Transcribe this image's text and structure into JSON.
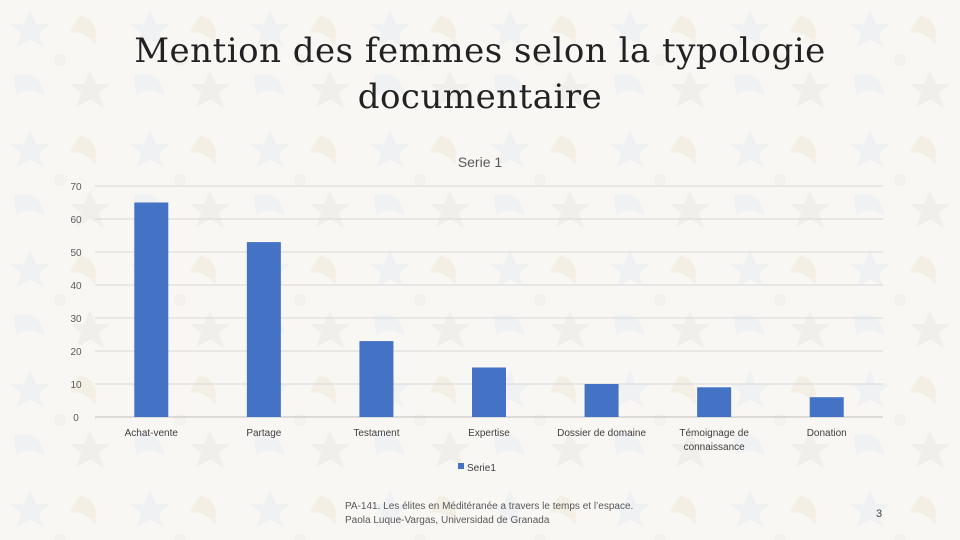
{
  "slide": {
    "title": "Mention des femmes selon la typologie documentaire",
    "footer": "PA-141. Les élites en Méditéranée a travers le temps et l’espace. Paola Luque-Vargas, Universidad de Granada",
    "page_number": "3"
  },
  "chart_data": {
    "type": "bar",
    "title": "Serie 1",
    "categories": [
      "Achat-vente",
      "Partage",
      "Testament",
      "Expertise",
      "Dossier de domaine",
      "Témoignage de connaissance",
      "Donation"
    ],
    "category_lines": [
      [
        "Achat-vente"
      ],
      [
        "Partage"
      ],
      [
        "Testament"
      ],
      [
        "Expertise"
      ],
      [
        "Dossier de domaine"
      ],
      [
        "Témoignage de",
        "connaissance"
      ],
      [
        "Donation"
      ]
    ],
    "series": [
      {
        "name": "Serie1",
        "values": [
          65,
          53,
          23,
          15,
          10,
          9,
          6
        ],
        "color": "#4472C4"
      }
    ],
    "ylim": [
      0,
      70
    ],
    "yticks": [
      0,
      10,
      20,
      30,
      40,
      50,
      60,
      70
    ],
    "grid": true,
    "legend": "bottom",
    "xlabel": "",
    "ylabel": ""
  }
}
